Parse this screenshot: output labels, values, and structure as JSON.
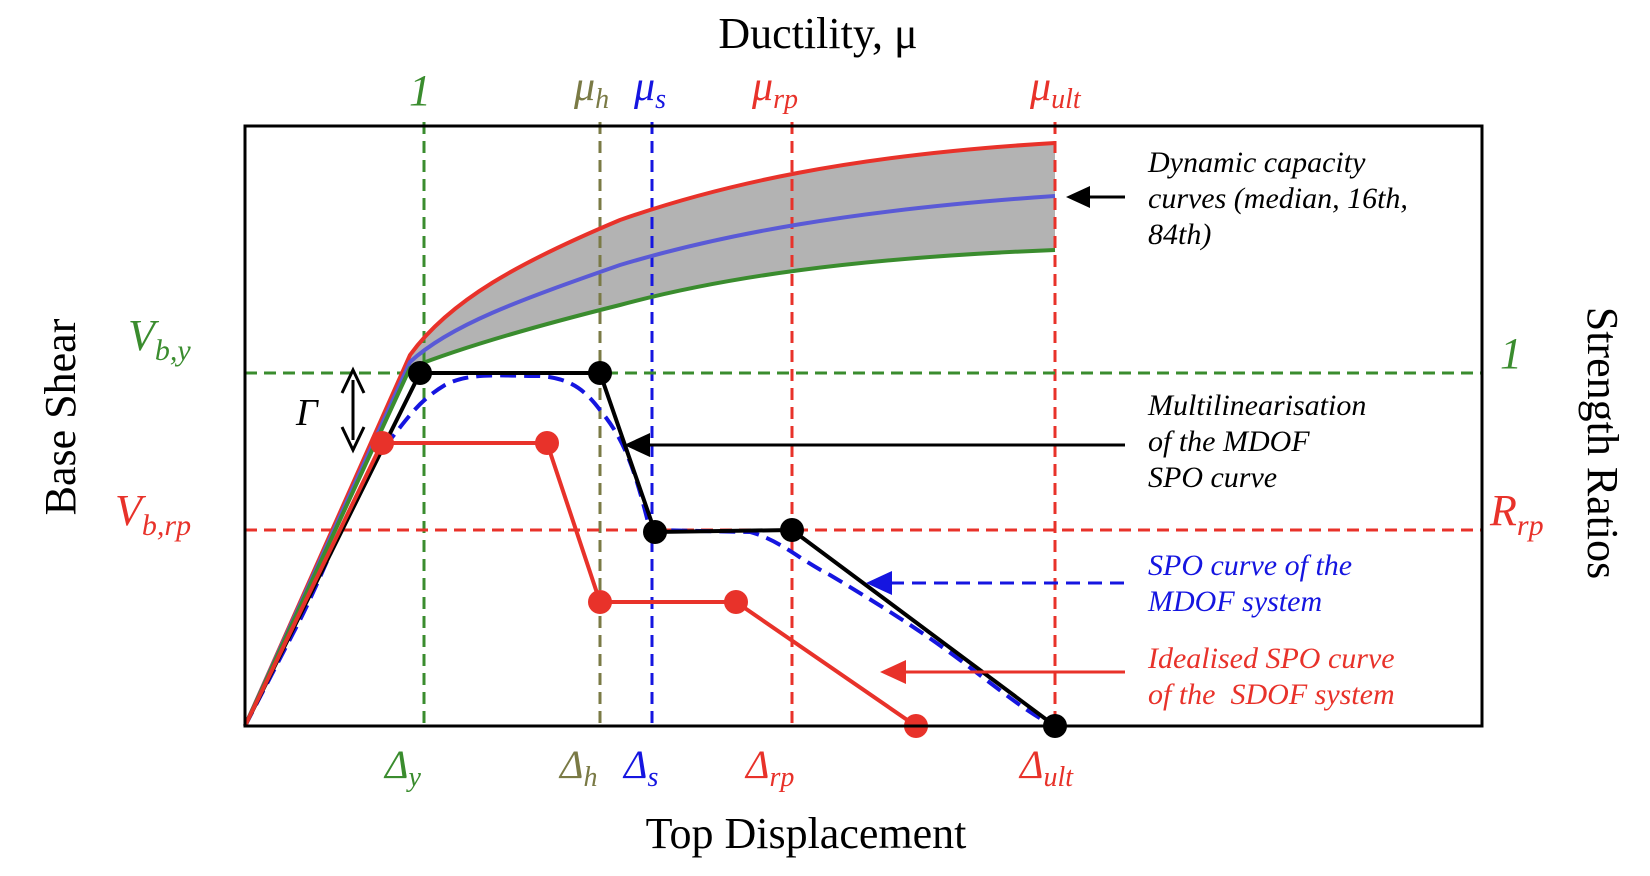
{
  "labels": {
    "top_axis_title": "Ductility, μ",
    "bottom_axis_title": "Top Displacement",
    "left_axis_title": "Base Shear",
    "right_axis_title": "Strength Ratios",
    "mu_1": "1",
    "mu_h": {
      "base": "μ",
      "sub": "h"
    },
    "mu_s": {
      "base": "μ",
      "sub": "s"
    },
    "mu_rp": {
      "base": "μ",
      "sub": "rp"
    },
    "mu_ult": {
      "base": "μ",
      "sub": "ult"
    },
    "delta_y": {
      "base": "Δ",
      "sub": "y"
    },
    "delta_h": {
      "base": "Δ",
      "sub": "h"
    },
    "delta_s": {
      "base": "Δ",
      "sub": "s"
    },
    "delta_rp": {
      "base": "Δ",
      "sub": "rp"
    },
    "delta_ult": {
      "base": "Δ",
      "sub": "ult"
    },
    "vby": {
      "base": "V",
      "sub": "b,y"
    },
    "vbrp": {
      "base": "V",
      "sub": "b,rp"
    },
    "strength_1": "1",
    "rrp": {
      "base": "R",
      "sub": "rp"
    },
    "gamma": "Γ"
  },
  "annotations": {
    "dynamic": [
      "Dynamic capacity",
      "curves (median, 16th,",
      "84th)"
    ],
    "multilinear": [
      "Multilinearisation",
      "of the MDOF",
      "SPO curve"
    ],
    "spo_mdof": [
      "SPO curve of the",
      "MDOF system"
    ],
    "spo_sdof": [
      "Idealised SPO curve",
      "of the  SDOF system"
    ]
  },
  "colors": {
    "green": "#3a8c2e",
    "olive": "#7a7a45",
    "blue": "#1515e0",
    "red": "#e8322a",
    "black": "#000000",
    "band_fill": "#b3b3b3",
    "median": "#5a5ad6"
  }
}
